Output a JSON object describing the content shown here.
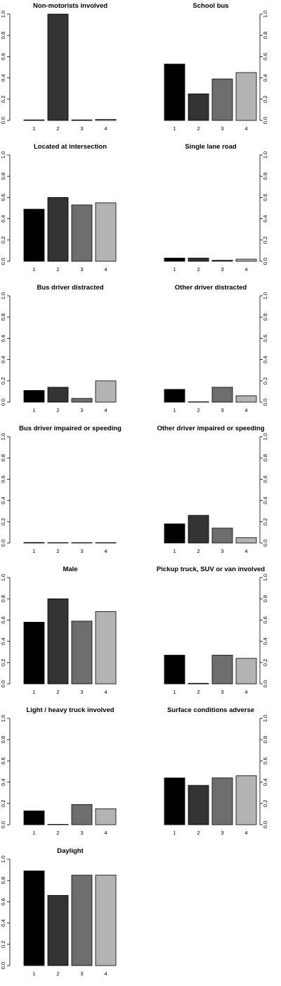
{
  "colors": {
    "1": "#000000",
    "2": "#333333",
    "3": "#6e6e6e",
    "4": "#b3b3b3"
  },
  "chart_data": [
    {
      "type": "bar",
      "title": "Non-motorists involved",
      "categories": [
        "1",
        "2",
        "3",
        "4"
      ],
      "values": [
        0.005,
        1.0,
        0.005,
        0.01
      ],
      "ylim": [
        0,
        1
      ],
      "yticks": [
        "0.0",
        "0.2",
        "0.4",
        "0.6",
        "0.8",
        "1.0"
      ],
      "axis_side": "left"
    },
    {
      "type": "bar",
      "title": "School bus",
      "categories": [
        "1",
        "2",
        "3",
        "4"
      ],
      "values": [
        0.53,
        0.25,
        0.39,
        0.45
      ],
      "ylim": [
        0,
        1
      ],
      "yticks": [
        "0.0",
        "0.2",
        "0.4",
        "0.6",
        "0.8",
        "1.0"
      ],
      "axis_side": "right"
    },
    {
      "type": "bar",
      "title": "Located at intersection",
      "categories": [
        "1",
        "2",
        "3",
        "4"
      ],
      "values": [
        0.49,
        0.6,
        0.53,
        0.55
      ],
      "ylim": [
        0,
        1
      ],
      "yticks": [
        "0.0",
        "0.2",
        "0.4",
        "0.6",
        "0.8",
        "1.0"
      ],
      "axis_side": "left"
    },
    {
      "type": "bar",
      "title": "Single lane road",
      "categories": [
        "1",
        "2",
        "3",
        "4"
      ],
      "values": [
        0.03,
        0.03,
        0.01,
        0.02
      ],
      "ylim": [
        0,
        1
      ],
      "yticks": [
        "0.0",
        "0.2",
        "0.4",
        "0.6",
        "0.8",
        "1.0"
      ],
      "axis_side": "right"
    },
    {
      "type": "bar",
      "title": "Bus driver distracted",
      "categories": [
        "1",
        "2",
        "3",
        "4"
      ],
      "values": [
        0.11,
        0.14,
        0.035,
        0.2
      ],
      "ylim": [
        0,
        1
      ],
      "yticks": [
        "0.0",
        "0.2",
        "0.4",
        "0.6",
        "0.8",
        "1.0"
      ],
      "axis_side": "left"
    },
    {
      "type": "bar",
      "title": "Other driver distracted",
      "categories": [
        "1",
        "2",
        "3",
        "4"
      ],
      "values": [
        0.12,
        0.0,
        0.14,
        0.06
      ],
      "ylim": [
        0,
        1
      ],
      "yticks": [
        "0.0",
        "0.2",
        "0.4",
        "0.6",
        "0.8",
        "1.0"
      ],
      "axis_side": "right"
    },
    {
      "type": "bar",
      "title": "Bus driver impaired or speeding",
      "categories": [
        "1",
        "2",
        "3",
        "4"
      ],
      "values": [
        0.005,
        0.003,
        0.003,
        0.003
      ],
      "ylim": [
        0,
        1
      ],
      "yticks": [
        "0.0",
        "0.2",
        "0.4",
        "0.6",
        "0.8",
        "1.0"
      ],
      "axis_side": "left"
    },
    {
      "type": "bar",
      "title": "Other driver impaired or speeding",
      "categories": [
        "1",
        "2",
        "3",
        "4"
      ],
      "values": [
        0.18,
        0.26,
        0.14,
        0.05
      ],
      "ylim": [
        0,
        1
      ],
      "yticks": [
        "0.0",
        "0.2",
        "0.4",
        "0.6",
        "0.8",
        "1.0"
      ],
      "axis_side": "right"
    },
    {
      "type": "bar",
      "title": "Male",
      "categories": [
        "1",
        "2",
        "3",
        "4"
      ],
      "values": [
        0.58,
        0.8,
        0.59,
        0.68
      ],
      "ylim": [
        0,
        1
      ],
      "yticks": [
        "0.0",
        "0.2",
        "0.4",
        "0.6",
        "0.8",
        "1.0"
      ],
      "axis_side": "left"
    },
    {
      "type": "bar",
      "title": "Pickup truck, SUV or van involved",
      "categories": [
        "1",
        "2",
        "3",
        "4"
      ],
      "values": [
        0.27,
        0.005,
        0.27,
        0.24
      ],
      "ylim": [
        0,
        1
      ],
      "yticks": [
        "0.0",
        "0.2",
        "0.4",
        "0.6",
        "0.8",
        "1.0"
      ],
      "axis_side": "right"
    },
    {
      "type": "bar",
      "title": "Light / heavy truck involved",
      "categories": [
        "1",
        "2",
        "3",
        "4"
      ],
      "values": [
        0.13,
        0.002,
        0.19,
        0.15
      ],
      "ylim": [
        0,
        1
      ],
      "yticks": [
        "0.0",
        "0.2",
        "0.4",
        "0.6",
        "0.8",
        "1.0"
      ],
      "axis_side": "left"
    },
    {
      "type": "bar",
      "title": "Surface conditions adverse",
      "categories": [
        "1",
        "2",
        "3",
        "4"
      ],
      "values": [
        0.44,
        0.37,
        0.44,
        0.46
      ],
      "ylim": [
        0,
        1
      ],
      "yticks": [
        "0.0",
        "0.2",
        "0.4",
        "0.6",
        "0.8",
        "1.0"
      ],
      "axis_side": "right"
    },
    {
      "type": "bar",
      "title": "Daylight",
      "categories": [
        "1",
        "2",
        "3",
        "4"
      ],
      "values": [
        0.89,
        0.66,
        0.85,
        0.85
      ],
      "ylim": [
        0,
        1
      ],
      "yticks": [
        "0.0",
        "0.2",
        "0.4",
        "0.6",
        "0.8",
        "1.0"
      ],
      "axis_side": "left"
    }
  ]
}
